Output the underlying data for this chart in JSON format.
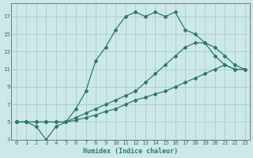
{
  "xlabel": "Humidex (Indice chaleur)",
  "xlim": [
    -0.5,
    23.5
  ],
  "ylim": [
    3,
    18.5
  ],
  "xticks": [
    0,
    1,
    2,
    3,
    4,
    5,
    6,
    7,
    8,
    9,
    10,
    11,
    12,
    13,
    14,
    15,
    16,
    17,
    18,
    19,
    20,
    21,
    22,
    23
  ],
  "yticks": [
    3,
    5,
    7,
    9,
    11,
    13,
    15,
    17
  ],
  "bg_color": "#cce8e8",
  "grid_color": "#aacccc",
  "line_color": "#2a7a6a",
  "lines": [
    {
      "x": [
        0,
        1,
        2,
        3,
        4,
        5,
        6,
        7,
        8,
        9,
        10,
        11,
        12,
        13,
        14,
        15,
        16,
        17,
        18,
        19,
        20,
        21,
        22,
        23
      ],
      "y": [
        5,
        5,
        4.5,
        3,
        4.5,
        5,
        6.5,
        8.5,
        12,
        13.5,
        15.5,
        17,
        17.5,
        17,
        17.5,
        17,
        17.5,
        15.5,
        15,
        14,
        12.5,
        11.5,
        11,
        11
      ]
    },
    {
      "x": [
        0,
        1,
        2,
        3,
        4,
        5,
        6,
        7,
        8,
        9,
        10,
        11,
        12,
        13,
        14,
        15,
        16,
        17,
        18,
        19,
        20,
        21,
        22,
        23
      ],
      "y": [
        5,
        5,
        5,
        5,
        5,
        5,
        5.5,
        6,
        6.5,
        7,
        7.5,
        8,
        8.5,
        9.5,
        10.5,
        11.5,
        12.5,
        13.5,
        14,
        14,
        13.5,
        12.5,
        11.5,
        11
      ]
    },
    {
      "x": [
        0,
        1,
        2,
        3,
        4,
        5,
        6,
        7,
        8,
        9,
        10,
        11,
        12,
        13,
        14,
        15,
        16,
        17,
        18,
        19,
        20,
        21,
        22,
        23
      ],
      "y": [
        5,
        5,
        5,
        5,
        5,
        5,
        5.2,
        5.5,
        5.8,
        6.2,
        6.5,
        7,
        7.5,
        7.8,
        8.2,
        8.5,
        9,
        9.5,
        10,
        10.5,
        11,
        11.5,
        11,
        11
      ]
    }
  ]
}
